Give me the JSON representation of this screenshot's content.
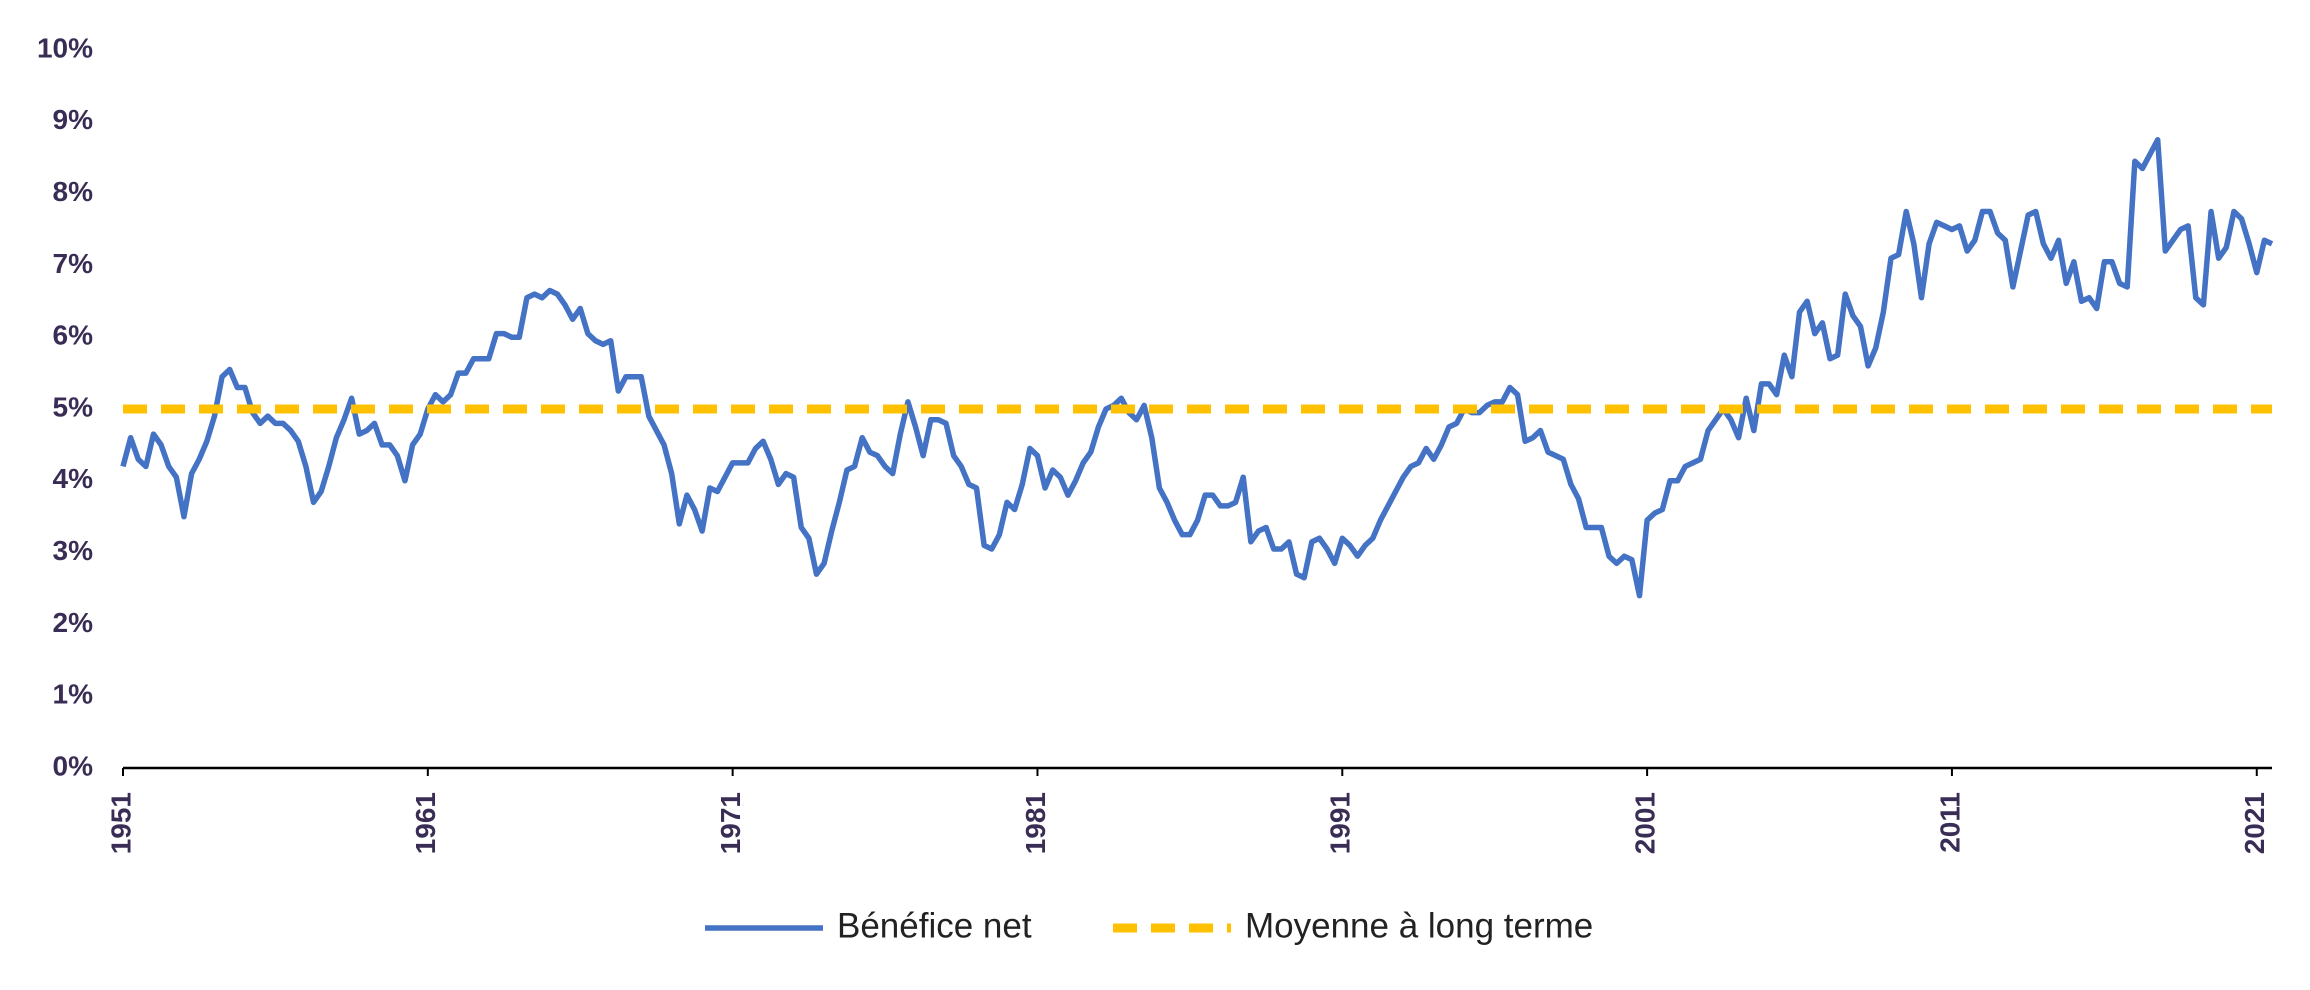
{
  "chart_data": {
    "type": "line",
    "xlim": [
      1951,
      2021.5
    ],
    "xticks": [
      1951,
      1961,
      1971,
      1981,
      1991,
      2001,
      2011,
      2021
    ],
    "ylim": [
      0,
      10
    ],
    "yticks": [
      {
        "value": 0,
        "label": "0%"
      },
      {
        "value": 1,
        "label": "1%"
      },
      {
        "value": 2,
        "label": "2%"
      },
      {
        "value": 3,
        "label": "3%"
      },
      {
        "value": 4,
        "label": "4%"
      },
      {
        "value": 5,
        "label": "5%"
      },
      {
        "value": 6,
        "label": "6%"
      },
      {
        "value": 7,
        "label": "7%"
      },
      {
        "value": 8,
        "label": "8%"
      },
      {
        "value": 9,
        "label": "9%"
      },
      {
        "value": 10,
        "label": "10%"
      }
    ],
    "legend": "bottom",
    "series": [
      {
        "name": "Bénéfice net",
        "color": "#4472c4",
        "dashed": false,
        "x": [
          1951,
          1951.25,
          1951.5,
          1951.75,
          1952,
          1952.25,
          1952.5,
          1952.75,
          1953,
          1953.25,
          1953.5,
          1953.75,
          1954,
          1954.25,
          1954.5,
          1954.75,
          1955,
          1955.25,
          1955.5,
          1955.75,
          1956,
          1956.25,
          1956.5,
          1956.75,
          1957,
          1957.25,
          1957.5,
          1957.75,
          1958,
          1958.25,
          1958.5,
          1958.75,
          1959,
          1959.25,
          1959.5,
          1959.75,
          1960,
          1960.25,
          1960.5,
          1960.75,
          1961,
          1961.25,
          1961.5,
          1961.75,
          1962,
          1962.25,
          1962.5,
          1962.75,
          1963,
          1963.25,
          1963.5,
          1963.75,
          1964,
          1964.25,
          1964.5,
          1964.75,
          1965,
          1965.25,
          1965.5,
          1965.75,
          1966,
          1966.25,
          1966.5,
          1966.75,
          1967,
          1967.25,
          1967.5,
          1967.75,
          1968,
          1968.25,
          1968.5,
          1968.75,
          1969,
          1969.25,
          1969.5,
          1969.75,
          1970,
          1970.25,
          1970.5,
          1970.75,
          1971,
          1971.25,
          1971.5,
          1971.75,
          1972,
          1972.25,
          1972.5,
          1972.75,
          1973,
          1973.25,
          1973.5,
          1973.75,
          1974,
          1974.25,
          1974.5,
          1974.75,
          1975,
          1975.25,
          1975.5,
          1975.75,
          1976,
          1976.25,
          1976.5,
          1976.75,
          1977,
          1977.25,
          1977.5,
          1977.75,
          1978,
          1978.25,
          1978.5,
          1978.75,
          1979,
          1979.25,
          1979.5,
          1979.75,
          1980,
          1980.25,
          1980.5,
          1980.75,
          1981,
          1981.25,
          1981.5,
          1981.75,
          1982,
          1982.25,
          1982.5,
          1982.75,
          1983,
          1983.25,
          1983.5,
          1983.75,
          1984,
          1984.25,
          1984.5,
          1984.75,
          1985,
          1985.25,
          1985.5,
          1985.75,
          1986,
          1986.25,
          1986.5,
          1986.75,
          1987,
          1987.25,
          1987.5,
          1987.75,
          1988,
          1988.25,
          1988.5,
          1988.75,
          1989,
          1989.25,
          1989.5,
          1989.75,
          1990,
          1990.25,
          1990.5,
          1990.75,
          1991,
          1991.25,
          1991.5,
          1991.75,
          1992,
          1992.25,
          1992.5,
          1992.75,
          1993,
          1993.25,
          1993.5,
          1993.75,
          1994,
          1994.25,
          1994.5,
          1994.75,
          1995,
          1995.25,
          1995.5,
          1995.75,
          1996,
          1996.25,
          1996.5,
          1996.75,
          1997,
          1997.25,
          1997.5,
          1997.75,
          1998,
          1998.25,
          1998.5,
          1998.75,
          1999,
          1999.25,
          1999.5,
          1999.75,
          2000,
          2000.25,
          2000.5,
          2000.75,
          2001,
          2001.25,
          2001.5,
          2001.75,
          2002,
          2002.25,
          2002.5,
          2002.75,
          2003,
          2003.25,
          2003.5,
          2003.75,
          2004,
          2004.25,
          2004.5,
          2004.75,
          2005,
          2005.25,
          2005.5,
          2005.75,
          2006,
          2006.25,
          2006.5,
          2006.75,
          2007,
          2007.25,
          2007.5,
          2007.75,
          2008,
          2008.25,
          2008.5,
          2008.75,
          2009,
          2009.25,
          2009.5,
          2009.75,
          2010,
          2010.25,
          2010.5,
          2010.75,
          2011,
          2011.25,
          2011.5,
          2011.75,
          2012,
          2012.25,
          2012.5,
          2012.75,
          2013,
          2013.25,
          2013.5,
          2013.75,
          2014,
          2014.25,
          2014.5,
          2014.75,
          2015,
          2015.25,
          2015.5,
          2015.75,
          2016,
          2016.25,
          2016.5,
          2016.75,
          2017,
          2017.25,
          2017.5,
          2017.75,
          2018,
          2018.25,
          2018.5,
          2018.75,
          2019,
          2019.25,
          2019.5,
          2019.75,
          2020,
          2020.25,
          2020.5,
          2020.75,
          2021,
          2021.25,
          2021.5
        ],
        "values": [
          4.2,
          4.6,
          4.3,
          4.2,
          4.65,
          4.5,
          4.2,
          4.05,
          3.5,
          4.1,
          4.3,
          4.55,
          4.9,
          5.45,
          5.55,
          5.3,
          5.3,
          4.95,
          4.8,
          4.9,
          4.8,
          4.8,
          4.7,
          4.55,
          4.2,
          3.7,
          3.85,
          4.2,
          4.6,
          4.85,
          5.15,
          4.65,
          4.7,
          4.8,
          4.5,
          4.5,
          4.35,
          4.0,
          4.5,
          4.65,
          5.0,
          5.2,
          5.1,
          5.2,
          5.5,
          5.5,
          5.7,
          5.7,
          5.7,
          6.05,
          6.05,
          6.0,
          6.0,
          6.55,
          6.6,
          6.55,
          6.65,
          6.6,
          6.45,
          6.25,
          6.4,
          6.05,
          5.95,
          5.9,
          5.95,
          5.25,
          5.45,
          5.45,
          5.45,
          4.9,
          4.7,
          4.5,
          4.1,
          3.4,
          3.8,
          3.6,
          3.3,
          3.9,
          3.85,
          4.05,
          4.25,
          4.25,
          4.25,
          4.45,
          4.55,
          4.3,
          3.95,
          4.1,
          4.05,
          3.35,
          3.2,
          2.7,
          2.85,
          3.3,
          3.7,
          4.15,
          4.2,
          4.6,
          4.4,
          4.35,
          4.2,
          4.1,
          4.65,
          5.1,
          4.75,
          4.35,
          4.85,
          4.85,
          4.8,
          4.35,
          4.2,
          3.95,
          3.9,
          3.1,
          3.05,
          3.25,
          3.7,
          3.6,
          3.95,
          4.45,
          4.35,
          3.9,
          4.15,
          4.05,
          3.8,
          4.0,
          4.25,
          4.4,
          4.75,
          5.0,
          5.05,
          5.15,
          4.95,
          4.85,
          5.05,
          4.6,
          3.9,
          3.7,
          3.45,
          3.25,
          3.25,
          3.45,
          3.8,
          3.8,
          3.65,
          3.65,
          3.7,
          4.05,
          3.15,
          3.3,
          3.35,
          3.05,
          3.05,
          3.15,
          2.7,
          2.65,
          3.15,
          3.2,
          3.05,
          2.85,
          3.2,
          3.1,
          2.95,
          3.1,
          3.2,
          3.45,
          3.65,
          3.85,
          4.05,
          4.2,
          4.25,
          4.45,
          4.3,
          4.5,
          4.75,
          4.8,
          5.0,
          4.95,
          4.95,
          5.05,
          5.1,
          5.1,
          5.3,
          5.2,
          4.55,
          4.6,
          4.7,
          4.4,
          4.35,
          4.3,
          3.95,
          3.75,
          3.35,
          3.35,
          3.35,
          2.95,
          2.85,
          2.95,
          2.9,
          2.4,
          3.45,
          3.55,
          3.6,
          4.0,
          4.0,
          4.2,
          4.25,
          4.3,
          4.7,
          4.85,
          5.0,
          4.85,
          4.6,
          5.15,
          4.7,
          5.35,
          5.35,
          5.2,
          5.75,
          5.45,
          6.35,
          6.5,
          6.05,
          6.2,
          5.7,
          5.75,
          6.6,
          6.3,
          6.15,
          5.6,
          5.85,
          6.35,
          7.1,
          7.15,
          7.75,
          7.3,
          6.55,
          7.3,
          7.6,
          7.55,
          7.5,
          7.55,
          7.2,
          7.35,
          7.75,
          7.75,
          7.45,
          7.35,
          6.7,
          7.2,
          7.7,
          7.75,
          7.3,
          7.1,
          7.35,
          6.75,
          7.05,
          6.5,
          6.55,
          6.4,
          7.05,
          7.05,
          6.75,
          6.7,
          8.45,
          8.35,
          8.55,
          8.75,
          7.2,
          7.35,
          7.5,
          7.55,
          6.55,
          6.45,
          7.75,
          7.1,
          7.25,
          7.75,
          7.65,
          7.3,
          6.9,
          7.35,
          7.3
        ]
      },
      {
        "name": "Moyenne à long terme",
        "color": "#ffc000",
        "dashed": true,
        "x": [
          1951,
          2021.5
        ],
        "values": [
          5,
          5
        ]
      }
    ]
  }
}
